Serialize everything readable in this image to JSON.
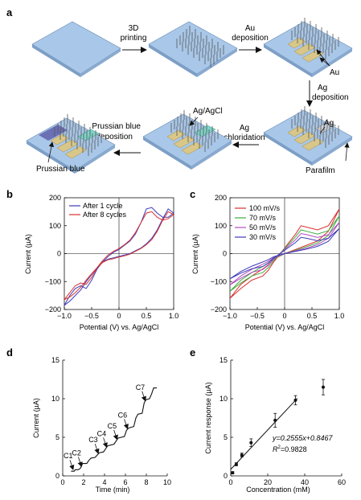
{
  "panel_a": {
    "label": "a",
    "steps": {
      "printing": [
        "3D",
        "printing"
      ],
      "au_dep": [
        "Au",
        "deposition"
      ],
      "au": "Au",
      "ag_dep": [
        "Ag",
        "deposition"
      ],
      "ag": "Ag",
      "parafilm": "Parafilm",
      "agagcl": "Ag/AgCl",
      "chloridation": [
        "Ag",
        "chloridation"
      ],
      "pb_dep": [
        "Prussian blue",
        "deposition"
      ],
      "pb": "Prussian blue"
    },
    "colors": {
      "substrate": "#a9c7e8",
      "au": "#d9c789",
      "ag": "#c8d0d8",
      "pb": "#5d5aa8",
      "agcl": "#7fd3c8"
    }
  },
  "chart_data": [
    {
      "panel": "b",
      "type": "line",
      "xlabel": "Potential (V) vs. Ag/AgCl",
      "ylabel": "Current (µA)",
      "xlim": [
        -1.0,
        1.0
      ],
      "ylim": [
        -200,
        200
      ],
      "xticks": [
        "-1.0",
        "-0.5",
        "0",
        "0.5",
        "1.0"
      ],
      "yticks": [
        "-200",
        "-100",
        "0",
        "100",
        "200"
      ],
      "legend_position": "top-left",
      "series": [
        {
          "name": "After 1 cycle",
          "color": "#3b3bb8",
          "x": [
            -1.0,
            -0.9,
            -0.8,
            -0.7,
            -0.6,
            -0.5,
            -0.4,
            -0.3,
            -0.2,
            -0.1,
            0.0,
            0.1,
            0.2,
            0.3,
            0.4,
            0.5,
            0.6,
            0.7,
            0.8,
            0.9,
            1.0,
            0.9,
            0.8,
            0.7,
            0.6,
            0.5,
            0.4,
            0.3,
            0.2,
            0.1,
            0.0,
            -0.1,
            -0.2,
            -0.3,
            -0.4,
            -0.5,
            -0.6,
            -0.7,
            -0.8,
            -0.9,
            -1.0
          ],
          "y": [
            -185,
            -150,
            -125,
            -115,
            -125,
            -95,
            -55,
            -30,
            -10,
            5,
            15,
            30,
            45,
            70,
            110,
            160,
            165,
            145,
            130,
            130,
            145,
            160,
            125,
            85,
            55,
            35,
            20,
            10,
            0,
            -5,
            -10,
            -15,
            -20,
            -30,
            -50,
            -75,
            -100,
            -130,
            -150,
            -170,
            -185
          ]
        },
        {
          "name": "After 8 cycles",
          "color": "#d93030",
          "x": [
            -1.0,
            -0.9,
            -0.8,
            -0.7,
            -0.6,
            -0.5,
            -0.4,
            -0.3,
            -0.2,
            -0.1,
            0.0,
            0.1,
            0.2,
            0.3,
            0.4,
            0.5,
            0.6,
            0.7,
            0.8,
            0.9,
            1.0,
            0.9,
            0.8,
            0.7,
            0.6,
            0.5,
            0.4,
            0.3,
            0.2,
            0.1,
            0.0,
            -0.1,
            -0.2,
            -0.3,
            -0.4,
            -0.5,
            -0.6,
            -0.7,
            -0.8,
            -0.9,
            -1.0
          ],
          "y": [
            -165,
            -140,
            -115,
            -105,
            -110,
            -85,
            -50,
            -25,
            -5,
            8,
            18,
            32,
            48,
            75,
            110,
            145,
            150,
            130,
            120,
            125,
            140,
            150,
            120,
            80,
            50,
            32,
            18,
            8,
            -2,
            -8,
            -12,
            -18,
            -22,
            -32,
            -50,
            -72,
            -95,
            -120,
            -140,
            -155,
            -165
          ]
        }
      ]
    },
    {
      "panel": "c",
      "type": "line",
      "xlabel": "Potential (V) vs. Ag/AgCl",
      "ylabel": "Current (µA)",
      "xlim": [
        -1.0,
        1.0
      ],
      "ylim": [
        -200,
        200
      ],
      "xticks": [
        "-1.0",
        "-0.5",
        "0",
        "0.5",
        "1.0"
      ],
      "yticks": [
        "-200",
        "-100",
        "0",
        "100",
        "200"
      ],
      "legend_position": "top-left",
      "series": [
        {
          "name": "100 mV/s",
          "color": "#d93030",
          "x": [
            -1.0,
            -0.8,
            -0.6,
            -0.4,
            -0.3,
            -0.2,
            0.0,
            0.2,
            0.3,
            0.4,
            0.6,
            0.8,
            1.0,
            0.8,
            0.6,
            0.4,
            0.2,
            0.0,
            -0.2,
            -0.3,
            -0.4,
            -0.6,
            -0.8,
            -1.0
          ],
          "y": [
            -160,
            -125,
            -95,
            -80,
            -60,
            -30,
            20,
            70,
            100,
            95,
            85,
            100,
            160,
            80,
            45,
            30,
            15,
            0,
            -20,
            -40,
            -55,
            -80,
            -110,
            -160
          ]
        },
        {
          "name": "70 mV/s",
          "color": "#3cae3c",
          "x": [
            -1.0,
            -0.8,
            -0.6,
            -0.4,
            -0.3,
            -0.2,
            0.0,
            0.2,
            0.3,
            0.4,
            0.6,
            0.8,
            1.0,
            0.8,
            0.6,
            0.4,
            0.2,
            0.0,
            -0.2,
            -0.3,
            -0.4,
            -0.6,
            -0.8,
            -1.0
          ],
          "y": [
            -135,
            -105,
            -80,
            -68,
            -50,
            -25,
            18,
            60,
            85,
            80,
            70,
            82,
            135,
            65,
            38,
            25,
            12,
            0,
            -17,
            -33,
            -46,
            -68,
            -95,
            -135
          ]
        },
        {
          "name": "50 mV/s",
          "color": "#b04cc0",
          "x": [
            -1.0,
            -0.8,
            -0.6,
            -0.4,
            -0.3,
            -0.2,
            0.0,
            0.2,
            0.3,
            0.4,
            0.6,
            0.8,
            1.0,
            0.8,
            0.6,
            0.4,
            0.2,
            0.0,
            -0.2,
            -0.3,
            -0.4,
            -0.6,
            -0.8,
            -1.0
          ],
          "y": [
            -112,
            -88,
            -67,
            -57,
            -42,
            -20,
            15,
            50,
            72,
            68,
            58,
            68,
            112,
            55,
            32,
            20,
            10,
            0,
            -14,
            -28,
            -38,
            -56,
            -80,
            -112
          ]
        },
        {
          "name": "30 mV/s",
          "color": "#3b3bb8",
          "x": [
            -1.0,
            -0.8,
            -0.6,
            -0.4,
            -0.3,
            -0.2,
            0.0,
            0.2,
            0.3,
            0.4,
            0.6,
            0.8,
            1.0,
            0.8,
            0.6,
            0.4,
            0.2,
            0.0,
            -0.2,
            -0.3,
            -0.4,
            -0.6,
            -0.8,
            -1.0
          ],
          "y": [
            -90,
            -70,
            -54,
            -46,
            -34,
            -16,
            12,
            40,
            58,
            55,
            46,
            55,
            90,
            44,
            26,
            16,
            8,
            0,
            -11,
            -22,
            -30,
            -45,
            -64,
            -90
          ]
        }
      ]
    },
    {
      "panel": "d",
      "type": "line",
      "xlabel": "Time (min)",
      "ylabel": "Current (µA)",
      "xlim": [
        0,
        10
      ],
      "ylim": [
        0,
        15
      ],
      "xticks": [
        "0",
        "2",
        "4",
        "6",
        "8",
        "10"
      ],
      "yticks": [
        "0",
        "5",
        "10",
        "15"
      ],
      "series": [
        {
          "name": "",
          "color": "#111111",
          "x": [
            0.8,
            1.1,
            1.2,
            1.5,
            1.7,
            1.9,
            2.3,
            2.5,
            2.7,
            3.1,
            3.3,
            3.5,
            3.9,
            4.1,
            4.3,
            4.9,
            5.1,
            5.3,
            5.9,
            6.1,
            6.3,
            6.8,
            7.0,
            7.2,
            7.6,
            7.8,
            8.0,
            8.3,
            8.5,
            8.7,
            9.0
          ],
          "y": [
            0.6,
            0.6,
            0.8,
            0.8,
            1.0,
            1.6,
            1.6,
            2.0,
            2.3,
            2.4,
            2.7,
            3.0,
            3.1,
            3.5,
            3.9,
            4.1,
            4.5,
            4.9,
            5.1,
            5.9,
            6.2,
            6.4,
            7.5,
            8.0,
            8.1,
            9.5,
            9.9,
            10.0,
            10.6,
            11.4,
            11.4
          ]
        }
      ],
      "annotations": [
        {
          "text": "C1",
          "x": 1.0
        },
        {
          "text": "C2",
          "x": 1.8
        },
        {
          "text": "C3",
          "x": 3.4
        },
        {
          "text": "C4",
          "x": 4.2
        },
        {
          "text": "C5",
          "x": 5.2
        },
        {
          "text": "C6",
          "x": 6.2
        },
        {
          "text": "C7",
          "x": 7.9
        }
      ]
    },
    {
      "panel": "e",
      "type": "scatter",
      "xlabel": "Concentration (mM)",
      "ylabel": "Current response (µA)",
      "xlim": [
        0,
        60
      ],
      "ylim": [
        0,
        15
      ],
      "xticks": [
        "0",
        "20",
        "40",
        "60"
      ],
      "yticks": [
        "0",
        "5",
        "10",
        "15"
      ],
      "points": [
        {
          "x": 1,
          "y": 0.4,
          "err": 0.15
        },
        {
          "x": 3,
          "y": 1.5,
          "err": 0.2
        },
        {
          "x": 6,
          "y": 2.7,
          "err": 0.25
        },
        {
          "x": 11,
          "y": 4.3,
          "err": 0.5
        },
        {
          "x": 24,
          "y": 7.2,
          "err": 0.9
        },
        {
          "x": 35,
          "y": 9.8,
          "err": 0.6
        },
        {
          "x": 50,
          "y": 11.5,
          "err": 1.0
        }
      ],
      "fit": {
        "slope": 0.2555,
        "intercept": 0.8467,
        "x_range": [
          0,
          36
        ]
      },
      "equation": "y=0.2555x+0.8467",
      "r2_label": "R",
      "r2_sup": "2",
      "r2_value": "=0.9828"
    }
  ]
}
